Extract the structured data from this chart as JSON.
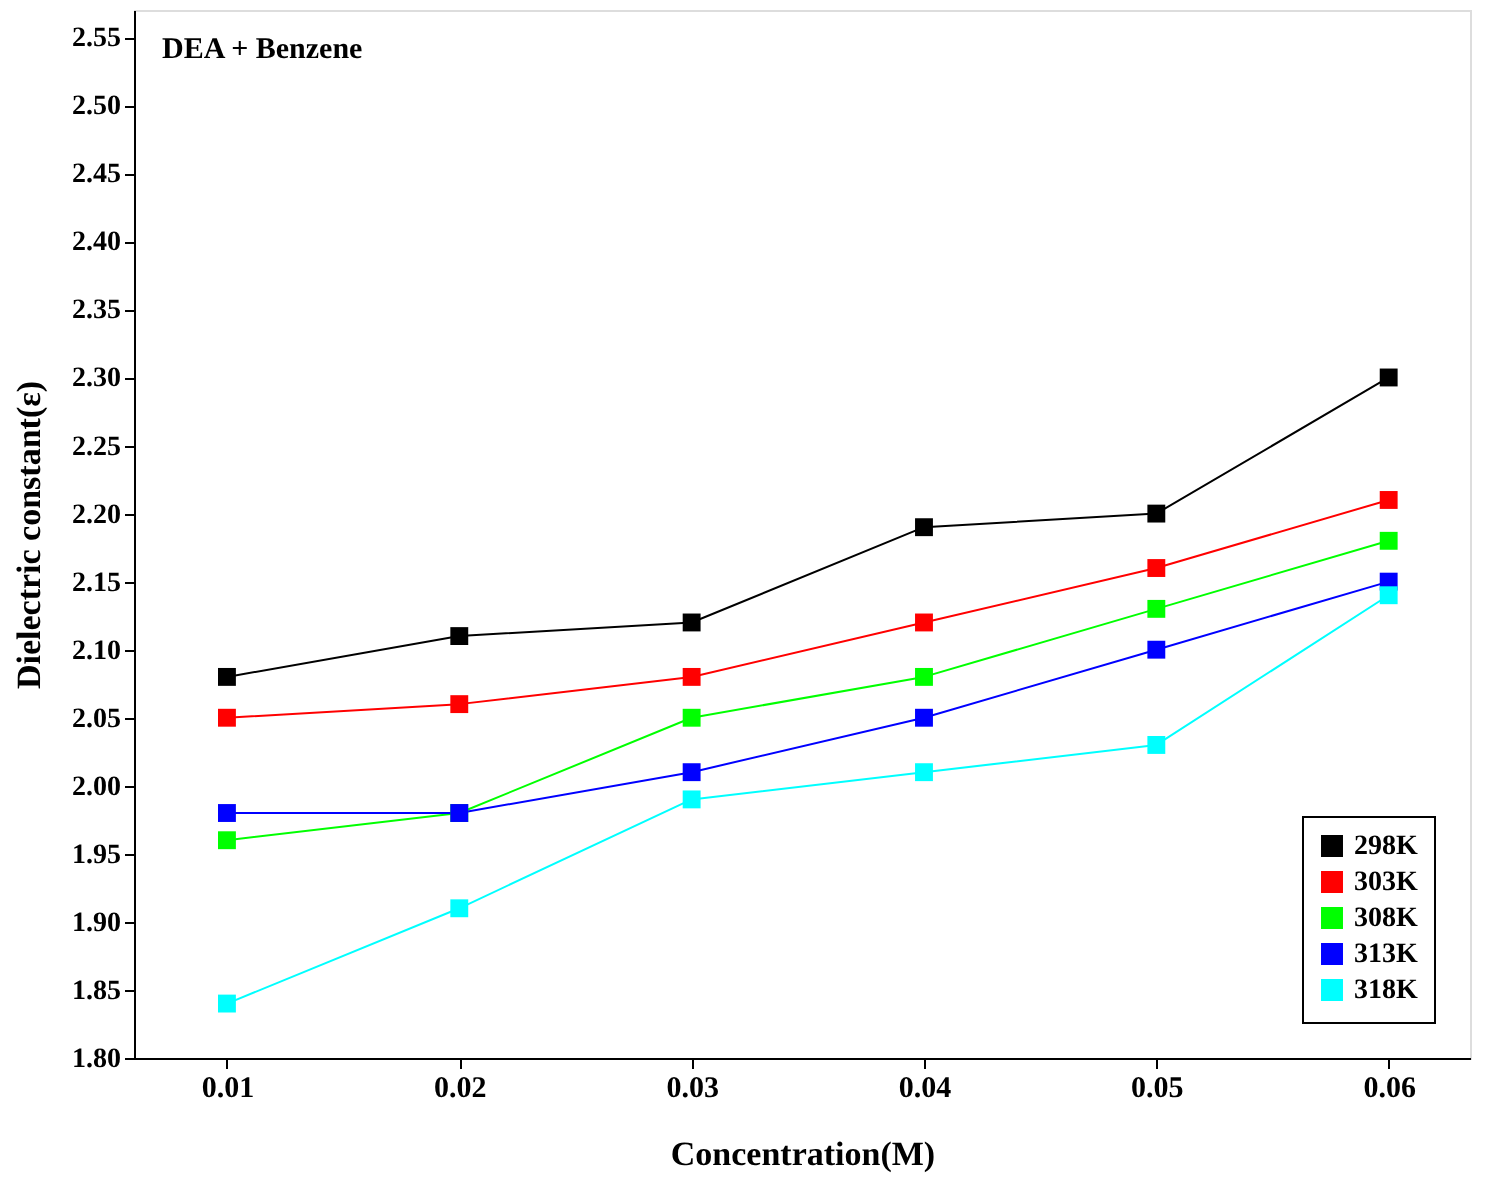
{
  "chart_data": {
    "type": "line",
    "title": "DEA + Benzene",
    "xlabel": "Concentration(M)",
    "ylabel": "Dielectric constant(ε)",
    "x": [
      0.01,
      0.02,
      0.03,
      0.04,
      0.05,
      0.06
    ],
    "series": [
      {
        "name": "298K",
        "color": "#000000",
        "values": [
          2.08,
          2.11,
          2.12,
          2.19,
          2.2,
          2.3
        ]
      },
      {
        "name": "303K",
        "color": "#ff0000",
        "values": [
          2.05,
          2.06,
          2.08,
          2.12,
          2.16,
          2.21
        ]
      },
      {
        "name": "308K",
        "color": "#00ff00",
        "values": [
          1.96,
          1.98,
          2.05,
          2.08,
          2.13,
          2.18
        ]
      },
      {
        "name": "313K",
        "color": "#0000ff",
        "values": [
          1.98,
          1.98,
          2.01,
          2.05,
          2.1,
          2.15
        ]
      },
      {
        "name": "318K",
        "color": "#00ffff",
        "values": [
          1.84,
          1.91,
          1.99,
          2.01,
          2.03,
          2.14
        ]
      }
    ],
    "xlim": [
      0.006,
      0.0635
    ],
    "xticks": [
      0.01,
      0.02,
      0.03,
      0.04,
      0.05,
      0.06
    ],
    "ylim": [
      1.8,
      2.57
    ],
    "yticks": [
      {
        "value": 1.8,
        "label": "1.80"
      },
      1.85,
      {
        "value": 1.9,
        "label": "1.90"
      },
      1.95,
      {
        "value": 2.0,
        "label": "2.00"
      },
      2.05,
      {
        "value": 2.1,
        "label": "2.10"
      },
      2.15,
      {
        "value": 2.2,
        "label": "2.20"
      },
      2.25,
      {
        "value": 2.3,
        "label": "2.30"
      },
      2.35,
      {
        "value": 2.4,
        "label": "2.40"
      },
      2.45,
      {
        "value": 2.5,
        "label": "2.50"
      },
      2.55
    ],
    "marker": "square",
    "line_style": "solid",
    "grid": false,
    "legend": "bottom right"
  }
}
